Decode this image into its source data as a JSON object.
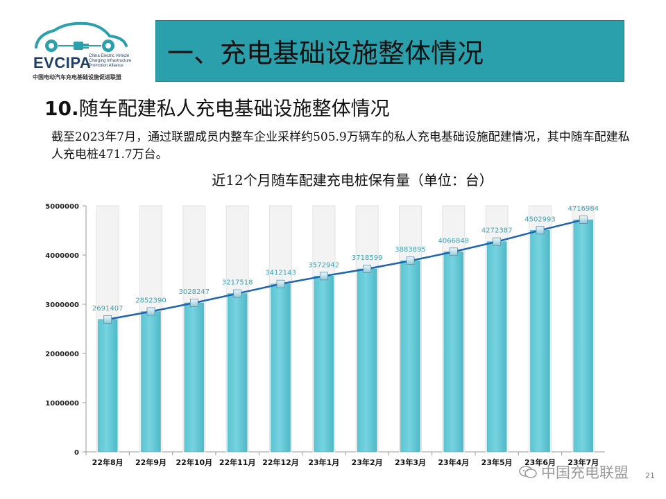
{
  "logo": {
    "brand": "EVCIPA",
    "tagline": [
      "China Electric Vehicle",
      "Charging Infrastructure",
      "Promotion Alliance"
    ],
    "cn_name": "中国电动汽车充电基础设施促进联盟",
    "color": "#2aa0ad"
  },
  "header": {
    "title": "一、充电基础设施整体情况",
    "bar_color": "#2aa0ad"
  },
  "section": {
    "number": "10.",
    "title": "随车配建私人充电基础设施整体情况"
  },
  "intro_text": "截至2023年7月，通过联盟成员内整车企业采样约505.9万辆车的私人充电基础设施配建情况，其中随车配建私人充电桩471.7万台。",
  "chart_data": {
    "type": "bar",
    "title": "近12个月随车配建充电桩保有量（单位：台）",
    "categories": [
      "22年8月",
      "22年9月",
      "22年10月",
      "22年11月",
      "22年12月",
      "23年1月",
      "23年2月",
      "23年3月",
      "23年4月",
      "23年5月",
      "23年6月",
      "23年7月"
    ],
    "values": [
      2691407,
      2852390,
      3028247,
      3217518,
      3412143,
      3572942,
      3718599,
      3883895,
      4066848,
      4272387,
      4502993,
      4716984
    ],
    "data_labels": [
      "2691407",
      "2852390",
      "3028247",
      "3217518",
      "3412143",
      "3572942",
      "3718599",
      "3883895",
      "4066848",
      "4272387",
      "4502993",
      "4716984"
    ],
    "yticks": [
      "0",
      "1000000",
      "2000000",
      "3000000",
      "4000000",
      "5000000"
    ],
    "ylim": [
      0,
      5000000
    ],
    "overlay_line": "same values as bars",
    "grid": false,
    "legend": "none",
    "bar_color": "#76d3df",
    "line_color": "#1b63b1",
    "label_color": "#3aa6b4"
  },
  "watermark": {
    "text": "中国充电联盟"
  },
  "page_number": "21"
}
